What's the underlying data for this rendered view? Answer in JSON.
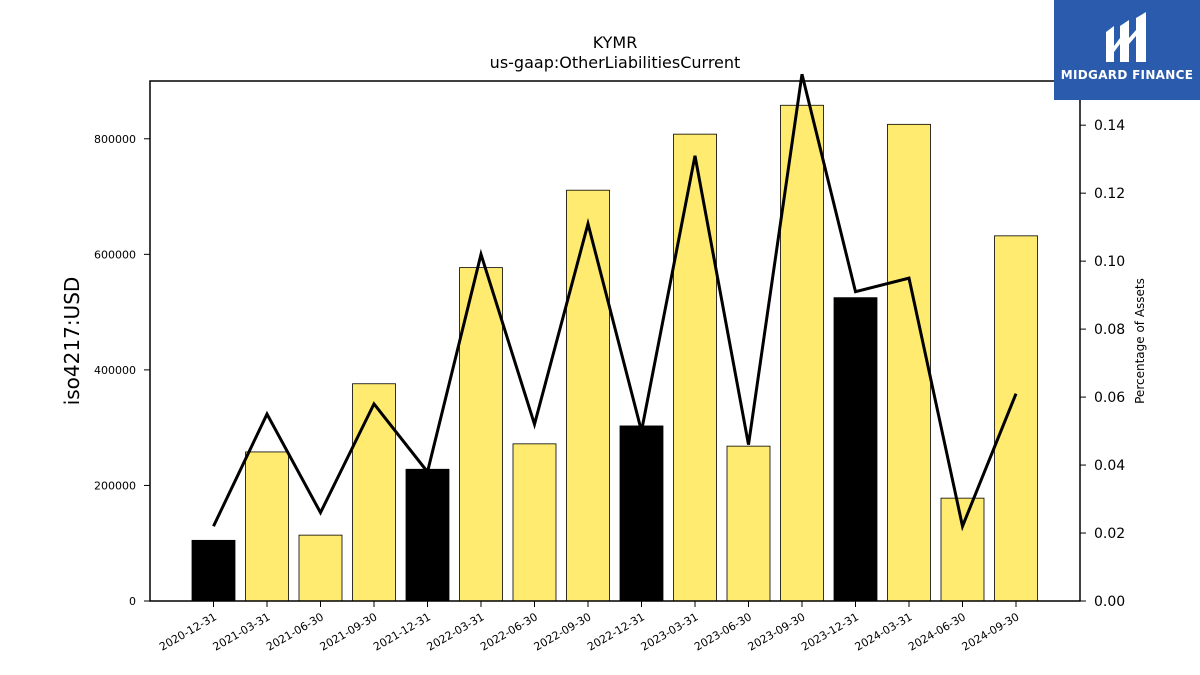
{
  "brand": {
    "name": "MIDGARD FINANCE",
    "logo_icon": "midgard-m-logo-icon",
    "background": "#2b5bad"
  },
  "chart_data": {
    "type": "bar",
    "title": "KYMR",
    "subtitle": "us-gaap:OtherLiabilitiesCurrent",
    "ylabel": "iso4217:USD",
    "y2label": "Percentage of Assets",
    "categories": [
      "2020-12-31",
      "2021-03-31",
      "2021-06-30",
      "2021-09-30",
      "2021-12-31",
      "2022-03-31",
      "2022-06-30",
      "2022-09-30",
      "2022-12-31",
      "2023-03-31",
      "2023-06-30",
      "2023-09-30",
      "2023-12-31",
      "2024-03-31",
      "2024-06-30",
      "2024-09-30"
    ],
    "series": [
      {
        "type": "bar",
        "values": [
          105000,
          258000,
          114000,
          376000,
          228000,
          577000,
          272000,
          711000,
          303000,
          808000,
          268000,
          858000,
          525000,
          825000,
          178000,
          632000
        ]
      },
      {
        "type": "line",
        "axis": "right",
        "values": [
          0.022,
          0.055,
          0.026,
          0.058,
          0.038,
          0.102,
          0.052,
          0.111,
          0.05,
          0.131,
          0.046,
          0.155,
          0.091,
          0.095,
          0.022,
          0.061
        ]
      }
    ],
    "bar_colors": [
      "#000000",
      "#ffeb70",
      "#ffeb70",
      "#ffeb70",
      "#000000",
      "#ffeb70",
      "#ffeb70",
      "#ffeb70",
      "#000000",
      "#ffeb70",
      "#ffeb70",
      "#ffeb70",
      "#000000",
      "#ffeb70",
      "#ffeb70",
      "#ffeb70"
    ],
    "line_color": "#000000",
    "ylim": [
      0,
      900000
    ],
    "y2lim": [
      0,
      0.153
    ],
    "yticks": [
      "0",
      "200000",
      "400000",
      "600000",
      "800000"
    ],
    "y2ticks": [
      "0.00",
      "0.02",
      "0.04",
      "0.06",
      "0.08",
      "0.10",
      "0.12",
      "0.14"
    ],
    "grid": false,
    "legend": "none"
  }
}
